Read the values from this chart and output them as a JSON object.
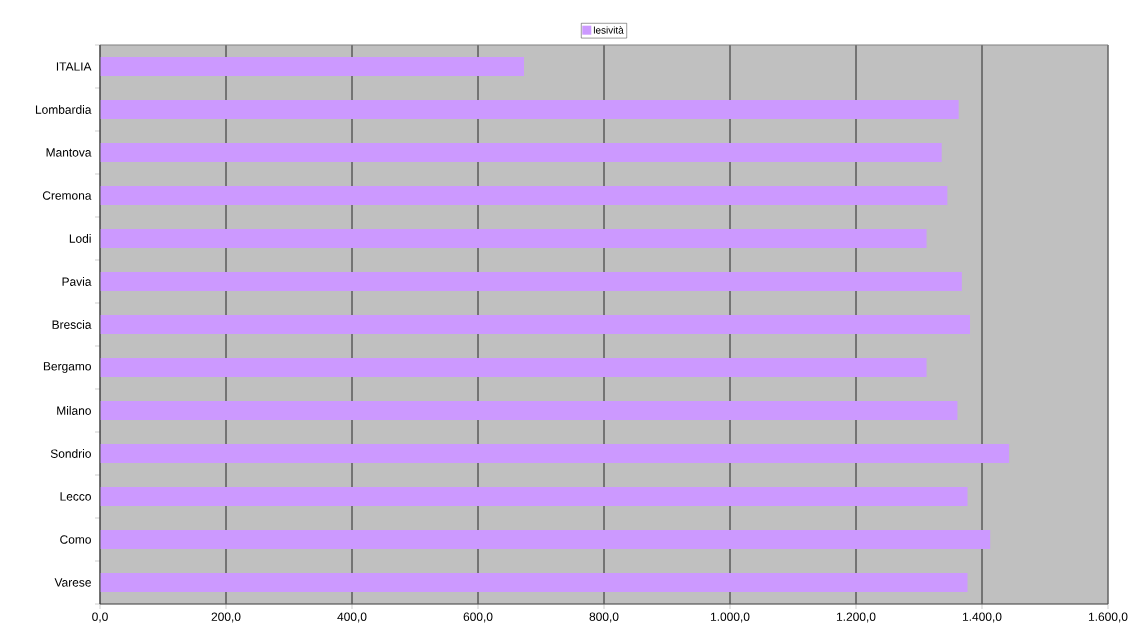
{
  "chart_data": {
    "type": "bar",
    "orientation": "horizontal",
    "categories": [
      "ITALIA",
      "Lombardia",
      "Mantova",
      "Cremona",
      "Lodi",
      "Pavia",
      "Brescia",
      "Bergamo",
      "Milano",
      "Sondrio",
      "Lecco",
      "Como",
      "Varese"
    ],
    "series": [
      {
        "name": "lesività",
        "color": "#cc99ff",
        "values": [
          673,
          1363,
          1336,
          1345,
          1312,
          1368,
          1381,
          1312,
          1361,
          1443,
          1377,
          1413,
          1377
        ]
      }
    ],
    "xlim": [
      0,
      1600
    ],
    "xticks": [
      {
        "value": 0,
        "label": "0,0"
      },
      {
        "value": 200,
        "label": "200,0"
      },
      {
        "value": 400,
        "label": "400,0"
      },
      {
        "value": 600,
        "label": "600,0"
      },
      {
        "value": 800,
        "label": "800,0"
      },
      {
        "value": 1000,
        "label": "1.000,0"
      },
      {
        "value": 1200,
        "label": "1.200,0"
      },
      {
        "value": 1400,
        "label": "1.400,0"
      },
      {
        "value": 1600,
        "label": "1.600,0"
      }
    ],
    "grid": "x",
    "legend": "top"
  }
}
